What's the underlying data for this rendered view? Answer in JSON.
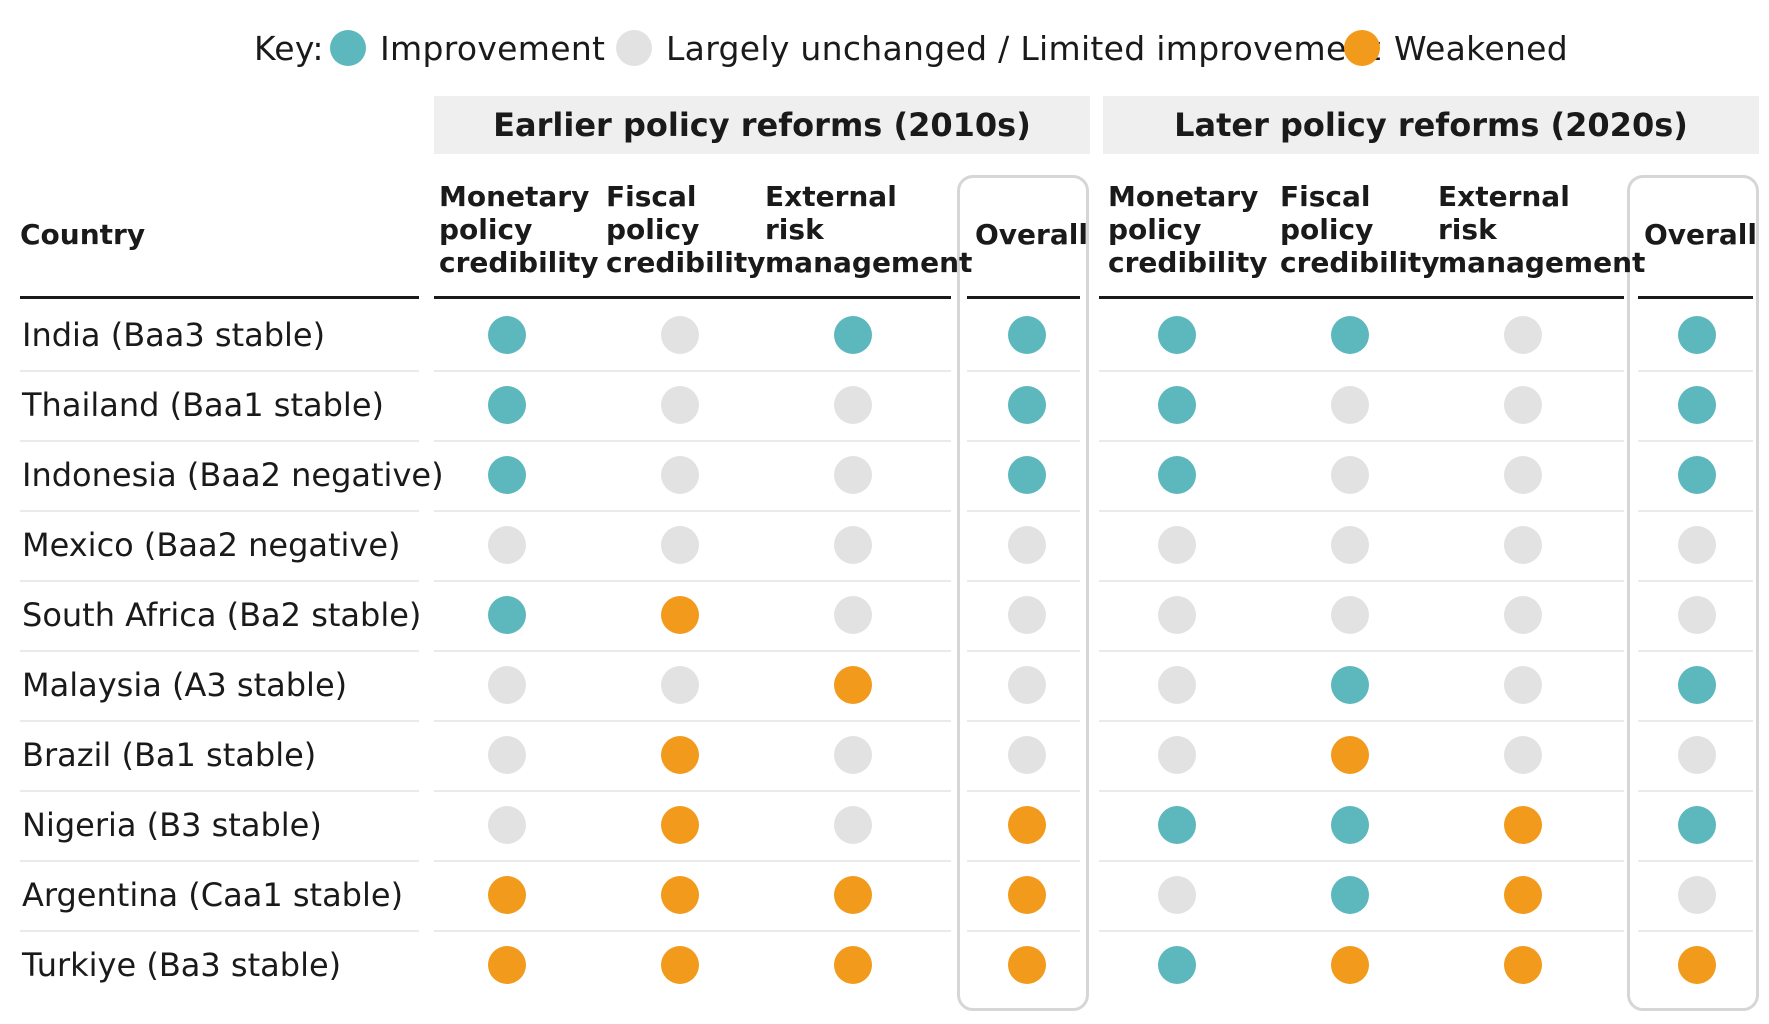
{
  "legend": {
    "key_label": "Key:",
    "items": [
      {
        "label": "Improvement",
        "color": "#5cb8bc"
      },
      {
        "label": "Largely unchanged / Limited improvement",
        "color": "#e2e2e2"
      },
      {
        "label": "Weakened",
        "color": "#f29a1c"
      }
    ]
  },
  "groups": [
    "Earlier policy reforms (2010s)",
    "Later policy reforms (2020s)"
  ],
  "country_header": "Country",
  "columns": [
    [
      "Monetary",
      "policy",
      "credibility"
    ],
    [
      "Fiscal",
      "policy",
      "credibility"
    ],
    [
      "External",
      "risk",
      "management"
    ],
    [
      "Overall"
    ]
  ],
  "status_colors": {
    "I": "#5cb8bc",
    "U": "#e2e2e2",
    "W": "#f29a1c"
  },
  "chart_data": {
    "type": "table",
    "status_legend": {
      "I": "Improvement",
      "U": "Largely unchanged / Limited improvement",
      "W": "Weakened"
    },
    "rows": [
      {
        "country": "India (Baa3 stable)",
        "earlier": [
          "I",
          "U",
          "I",
          "I"
        ],
        "later": [
          "I",
          "I",
          "U",
          "I"
        ]
      },
      {
        "country": "Thailand (Baa1 stable)",
        "earlier": [
          "I",
          "U",
          "U",
          "I"
        ],
        "later": [
          "I",
          "U",
          "U",
          "I"
        ]
      },
      {
        "country": "Indonesia (Baa2 negative)",
        "earlier": [
          "I",
          "U",
          "U",
          "I"
        ],
        "later": [
          "I",
          "U",
          "U",
          "I"
        ]
      },
      {
        "country": "Mexico (Baa2 negative)",
        "earlier": [
          "U",
          "U",
          "U",
          "U"
        ],
        "later": [
          "U",
          "U",
          "U",
          "U"
        ]
      },
      {
        "country": "South Africa (Ba2 stable)",
        "earlier": [
          "I",
          "W",
          "U",
          "U"
        ],
        "later": [
          "U",
          "U",
          "U",
          "U"
        ]
      },
      {
        "country": "Malaysia (A3 stable)",
        "earlier": [
          "U",
          "U",
          "W",
          "U"
        ],
        "later": [
          "U",
          "I",
          "U",
          "I"
        ]
      },
      {
        "country": "Brazil (Ba1 stable)",
        "earlier": [
          "U",
          "W",
          "U",
          "U"
        ],
        "later": [
          "U",
          "W",
          "U",
          "U"
        ]
      },
      {
        "country": "Nigeria (B3 stable)",
        "earlier": [
          "U",
          "W",
          "U",
          "W"
        ],
        "later": [
          "I",
          "I",
          "W",
          "I"
        ]
      },
      {
        "country": "Argentina (Caa1 stable)",
        "earlier": [
          "W",
          "W",
          "W",
          "W"
        ],
        "later": [
          "U",
          "I",
          "W",
          "U"
        ]
      },
      {
        "country": "Turkiye (Ba3 stable)",
        "earlier": [
          "W",
          "W",
          "W",
          "W"
        ],
        "later": [
          "I",
          "W",
          "W",
          "W"
        ]
      }
    ]
  }
}
